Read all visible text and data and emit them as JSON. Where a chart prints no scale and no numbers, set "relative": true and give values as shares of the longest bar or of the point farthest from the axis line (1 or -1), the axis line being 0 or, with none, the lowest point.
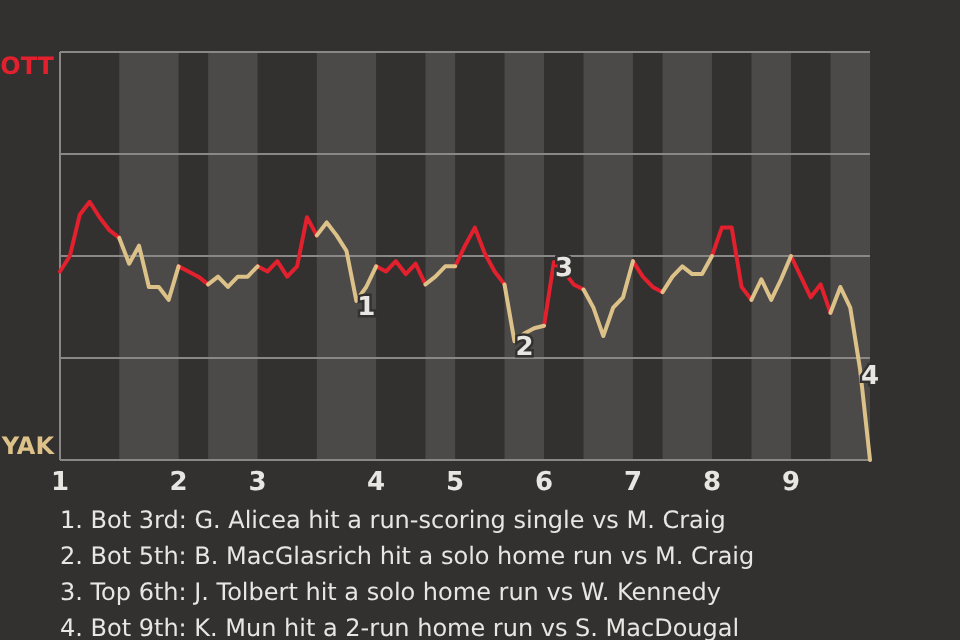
{
  "chart_data": {
    "type": "line",
    "relative": true,
    "categories": [
      "1",
      null,
      null,
      null,
      null,
      null,
      null,
      null,
      null,
      null,
      null,
      null,
      "2",
      null,
      null,
      null,
      null,
      null,
      null,
      null,
      "3",
      null,
      null,
      null,
      null,
      null,
      null,
      null,
      null,
      null,
      null,
      null,
      "4",
      null,
      null,
      null,
      null,
      null,
      null,
      null,
      "5",
      null,
      null,
      null,
      null,
      null,
      null,
      null,
      null,
      "6",
      null,
      null,
      null,
      null,
      null,
      null,
      null,
      null,
      "7",
      null,
      null,
      null,
      null,
      null,
      null,
      null,
      "8",
      null,
      null,
      null,
      null,
      null,
      null,
      null,
      "9",
      null,
      null,
      null,
      null,
      null,
      null,
      null,
      null
    ],
    "legend": "left",
    "ref_lines": [
      {
        "axis": "y",
        "value": 0.395,
        "color": "#8a8886"
      },
      {
        "axis": "y",
        "value": 0.79,
        "color": "#8a8886"
      },
      {
        "axis": "y",
        "value": 1.185,
        "color": "#8a8886"
      }
    ],
    "marker": "none",
    "line_style": "solid",
    "series": [
      {
        "name": "OTT",
        "color": "#e3202d",
        "values": [
          0.73,
          0.79,
          0.95,
          1,
          0.94,
          0.89,
          0.86,
          null,
          null,
          null,
          null,
          null,
          0.75,
          0.73,
          0.71,
          0.68,
          null,
          null,
          null,
          null,
          0.75,
          0.73,
          0.77,
          0.71,
          0.75,
          0.94,
          0.87,
          null,
          null,
          null,
          null,
          null,
          0.75,
          0.73,
          0.77,
          0.72,
          0.76,
          0.68,
          null,
          null,
          0.75,
          0.83,
          0.9,
          0.8,
          0.73,
          0.68,
          null,
          null,
          null,
          0.52,
          0.767,
          0.73,
          0.68,
          0.66,
          null,
          null,
          null,
          null,
          0.77,
          0.71,
          0.67,
          0.65,
          null,
          null,
          null,
          null,
          0.79,
          0.9,
          0.9,
          0.67,
          0.62,
          null,
          null,
          null,
          0.79,
          0.71,
          0.63,
          0.68,
          0.57,
          null,
          null,
          null,
          null
        ]
      },
      {
        "name": "YAK",
        "color": "#dcc189",
        "values": [
          null,
          null,
          null,
          null,
          null,
          null,
          0.86,
          0.76,
          0.83,
          0.67,
          0.67,
          0.62,
          0.75,
          null,
          null,
          0.68,
          0.71,
          0.67,
          0.71,
          0.71,
          0.75,
          null,
          null,
          null,
          null,
          null,
          0.87,
          0.92,
          0.87,
          0.81,
          0.616,
          0.67,
          0.75,
          null,
          null,
          null,
          null,
          0.68,
          0.71,
          0.75,
          0.75,
          null,
          null,
          null,
          null,
          0.68,
          0.46,
          0.49,
          0.51,
          0.52,
          null,
          null,
          null,
          0.66,
          0.59,
          0.48,
          0.59,
          0.63,
          0.77,
          null,
          null,
          0.65,
          0.71,
          0.75,
          0.72,
          0.72,
          0.79,
          null,
          null,
          null,
          0.62,
          0.7,
          0.62,
          0.7,
          0.79,
          null,
          null,
          null,
          0.57,
          0.67,
          0.59,
          0.35,
          0
        ]
      }
    ],
    "annotations": [
      {
        "text": "1",
        "y": 0.616
      },
      {
        "text": "2",
        "y": 0.46
      },
      {
        "text": "3",
        "y": 0.767
      },
      {
        "text": "4",
        "y": 0.35
      },
      "1. Bot 3rd: G. Alicea hit a run-scoring single vs M. Craig",
      "2. Bot 5th: B. MacGlasrich hit a solo home run vs M. Craig",
      "3. Top 6th: J. Tolbert hit a solo home run vs W. Kennedy",
      "4. Bot 9th: K. Mun hit a 2-run home run vs S. MacDougal"
    ]
  }
}
